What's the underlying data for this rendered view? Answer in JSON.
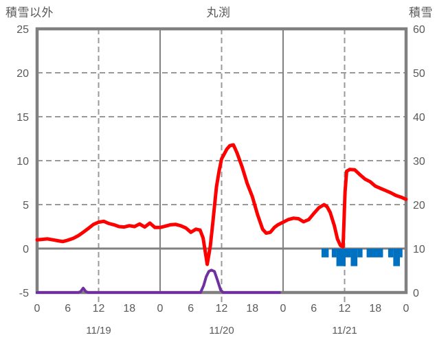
{
  "chart_data": {
    "type": "line",
    "title": "丸渕",
    "left_axis": {
      "title": "積雪以外",
      "min": -5,
      "max": 25,
      "ticks": [
        25,
        20,
        15,
        10,
        5,
        0,
        -5
      ]
    },
    "right_axis": {
      "title": "積雪",
      "min": 0,
      "max": 60,
      "ticks": [
        60,
        50,
        40,
        30,
        20,
        10,
        0
      ]
    },
    "x_axis": {
      "total_hours": 72,
      "tick_step_hours": 6,
      "tick_labels": [
        "0",
        "6",
        "12",
        "18",
        "0",
        "6",
        "12",
        "18",
        "0",
        "6",
        "12",
        "18",
        "0"
      ],
      "day_labels": [
        "11/19",
        "11/20",
        "11/21"
      ],
      "noon_hours": [
        12,
        36,
        60
      ],
      "midnight_hours": [
        24,
        48
      ]
    },
    "grid": {
      "border_color": "#808080",
      "solid_line_color": "#808080",
      "dashed_line_color": "#999999",
      "zero_line_color": "#808080",
      "label_color": "#595959",
      "background": "#FFFFFF"
    },
    "series": [
      {
        "name": "red-line",
        "kind": "line",
        "color": "#FF0000",
        "axis": "left",
        "points": [
          [
            0,
            1.0
          ],
          [
            1,
            1.05
          ],
          [
            2,
            1.1
          ],
          [
            3,
            1.0
          ],
          [
            4,
            0.9
          ],
          [
            5,
            0.8
          ],
          [
            6,
            0.95
          ],
          [
            7,
            1.15
          ],
          [
            8,
            1.45
          ],
          [
            9,
            1.85
          ],
          [
            10,
            2.3
          ],
          [
            11,
            2.75
          ],
          [
            12,
            3.0
          ],
          [
            13,
            3.1
          ],
          [
            14,
            2.85
          ],
          [
            15,
            2.7
          ],
          [
            16,
            2.5
          ],
          [
            17,
            2.45
          ],
          [
            18,
            2.6
          ],
          [
            19,
            2.5
          ],
          [
            20,
            2.8
          ],
          [
            21,
            2.45
          ],
          [
            22,
            2.9
          ],
          [
            23,
            2.4
          ],
          [
            24,
            2.4
          ],
          [
            25,
            2.55
          ],
          [
            26,
            2.7
          ],
          [
            27,
            2.75
          ],
          [
            28,
            2.6
          ],
          [
            29,
            2.35
          ],
          [
            30,
            1.85
          ],
          [
            31,
            2.2
          ],
          [
            31.8,
            2.1
          ],
          [
            32.4,
            1.2
          ],
          [
            33.2,
            -1.8
          ],
          [
            33.8,
            0.3
          ],
          [
            34.3,
            3.0
          ],
          [
            35,
            7.0
          ],
          [
            35.5,
            8.8
          ],
          [
            36,
            10.2
          ],
          [
            37,
            11.3
          ],
          [
            37.6,
            11.7
          ],
          [
            38.3,
            11.8
          ],
          [
            39,
            10.9
          ],
          [
            40,
            9.3
          ],
          [
            41,
            7.4
          ],
          [
            42,
            5.9
          ],
          [
            43,
            3.9
          ],
          [
            44,
            2.2
          ],
          [
            44.7,
            1.75
          ],
          [
            45.5,
            1.85
          ],
          [
            46.3,
            2.4
          ],
          [
            47,
            2.7
          ],
          [
            48,
            3.0
          ],
          [
            49,
            3.3
          ],
          [
            50,
            3.45
          ],
          [
            51,
            3.4
          ],
          [
            52,
            3.05
          ],
          [
            53,
            3.3
          ],
          [
            54,
            4.0
          ],
          [
            55,
            4.65
          ],
          [
            56,
            5.0
          ],
          [
            56.6,
            4.75
          ],
          [
            57.2,
            4.1
          ],
          [
            58,
            2.6
          ],
          [
            58.6,
            1.1
          ],
          [
            59.2,
            0.35
          ],
          [
            59.7,
            0.2
          ],
          [
            60.1,
            6.5
          ],
          [
            60.4,
            8.8
          ],
          [
            61,
            9.0
          ],
          [
            62,
            8.95
          ],
          [
            63,
            8.4
          ],
          [
            64,
            7.9
          ],
          [
            65,
            7.6
          ],
          [
            66,
            7.1
          ],
          [
            67,
            6.85
          ],
          [
            68,
            6.6
          ],
          [
            69,
            6.35
          ],
          [
            70,
            6.05
          ],
          [
            71,
            5.85
          ],
          [
            72,
            5.6
          ]
        ]
      },
      {
        "name": "purple-line",
        "kind": "line",
        "color": "#7030A0",
        "axis": "left",
        "points": [
          [
            0,
            -5
          ],
          [
            8,
            -5
          ],
          [
            8.5,
            -4.9
          ],
          [
            9,
            -4.5
          ],
          [
            9.5,
            -4.9
          ],
          [
            10,
            -5
          ],
          [
            31.9,
            -5
          ],
          [
            32.5,
            -4.2
          ],
          [
            33,
            -3.2
          ],
          [
            33.5,
            -2.6
          ],
          [
            34,
            -2.45
          ],
          [
            34.6,
            -2.6
          ],
          [
            35.2,
            -3.6
          ],
          [
            35.8,
            -4.7
          ],
          [
            36.3,
            -5
          ],
          [
            47.3,
            -5
          ]
        ]
      },
      {
        "name": "blue-bars",
        "kind": "bar",
        "color": "#0070C0",
        "axis": "left",
        "bars": [
          {
            "from": 55.5,
            "to": 56.9,
            "value": -1.0
          },
          {
            "from": 57.5,
            "to": 58.4,
            "value": -1.0
          },
          {
            "from": 58.4,
            "to": 60.2,
            "value": -2.0
          },
          {
            "from": 60.2,
            "to": 61.2,
            "value": -1.0
          },
          {
            "from": 61.2,
            "to": 62.5,
            "value": -2.0
          },
          {
            "from": 62.5,
            "to": 63.5,
            "value": -1.0
          },
          {
            "from": 64.3,
            "to": 67.5,
            "value": -1.0
          },
          {
            "from": 68.5,
            "to": 69.5,
            "value": -1.0
          },
          {
            "from": 69.5,
            "to": 70.8,
            "value": -2.0
          },
          {
            "from": 70.8,
            "to": 71.3,
            "value": -1.0
          }
        ]
      }
    ]
  }
}
